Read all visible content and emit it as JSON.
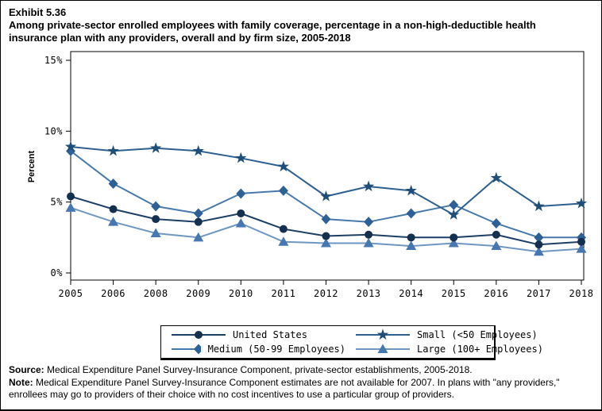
{
  "header": {
    "exhibit_label": "Exhibit 5.36",
    "title_line1": "Among private-sector enrolled employees with family coverage, percentage in a non-high-deductible health",
    "title_line2": "insurance plan with any providers, overall and by firm size, 2005-2018"
  },
  "chart_data": {
    "type": "line",
    "title": "Among private-sector enrolled employees with family coverage, percentage in a non-high-deductible health insurance plan with any providers, overall and by firm size, 2005-2018",
    "xlabel": "",
    "ylabel": "Percent",
    "ylim": [
      0,
      15
    ],
    "yticks": [
      0,
      5,
      10,
      15
    ],
    "ytick_labels": [
      "0%",
      "5%",
      "10%",
      "15%"
    ],
    "grid": false,
    "legend_position": "bottom",
    "x": [
      2005,
      2006,
      2008,
      2009,
      2010,
      2011,
      2012,
      2013,
      2014,
      2015,
      2016,
      2017,
      2018
    ],
    "note_missing_year": 2007,
    "series": [
      {
        "name": "United States",
        "marker": "circle",
        "marker_color": "#152f4e",
        "line_color": "#1d3f66",
        "values": [
          5.4,
          4.5,
          3.8,
          3.6,
          4.2,
          3.1,
          2.6,
          2.7,
          2.5,
          2.5,
          2.7,
          2.0,
          2.2
        ]
      },
      {
        "name": "Small (<50 Employees)",
        "marker": "star",
        "marker_color": "#1f4e79",
        "line_color": "#2d5f8f",
        "values": [
          8.9,
          8.6,
          8.8,
          8.6,
          8.1,
          7.5,
          5.4,
          6.1,
          5.8,
          4.1,
          6.7,
          4.7,
          4.9
        ]
      },
      {
        "name": "Medium (50-99 Employees)",
        "marker": "diamond",
        "marker_color": "#2e6095",
        "line_color": "#4879ab",
        "values": [
          8.6,
          6.3,
          4.7,
          4.2,
          5.6,
          5.8,
          3.8,
          3.6,
          4.2,
          4.8,
          3.5,
          2.5,
          2.5
        ]
      },
      {
        "name": "Large (100+ Employees)",
        "marker": "triangle",
        "marker_color": "#4777b0",
        "line_color": "#6f97c2",
        "values": [
          4.6,
          3.6,
          2.8,
          2.5,
          3.5,
          2.2,
          2.1,
          2.1,
          1.9,
          2.1,
          1.9,
          1.5,
          1.7
        ]
      }
    ],
    "draw_order": [
      2,
      3,
      0,
      1
    ]
  },
  "footnotes": {
    "source_label": "Source:",
    "source_text": " Medical Expenditure Panel Survey-Insurance Component, private-sector establishments, 2005-2018.",
    "note_label": "Note:",
    "note_text": " Medical Expenditure Panel Survey-Insurance Component estimates are not available for 2007. In plans with \"any providers,\" enrollees may go to providers of their choice with no cost incentives to use a particular group of providers."
  }
}
